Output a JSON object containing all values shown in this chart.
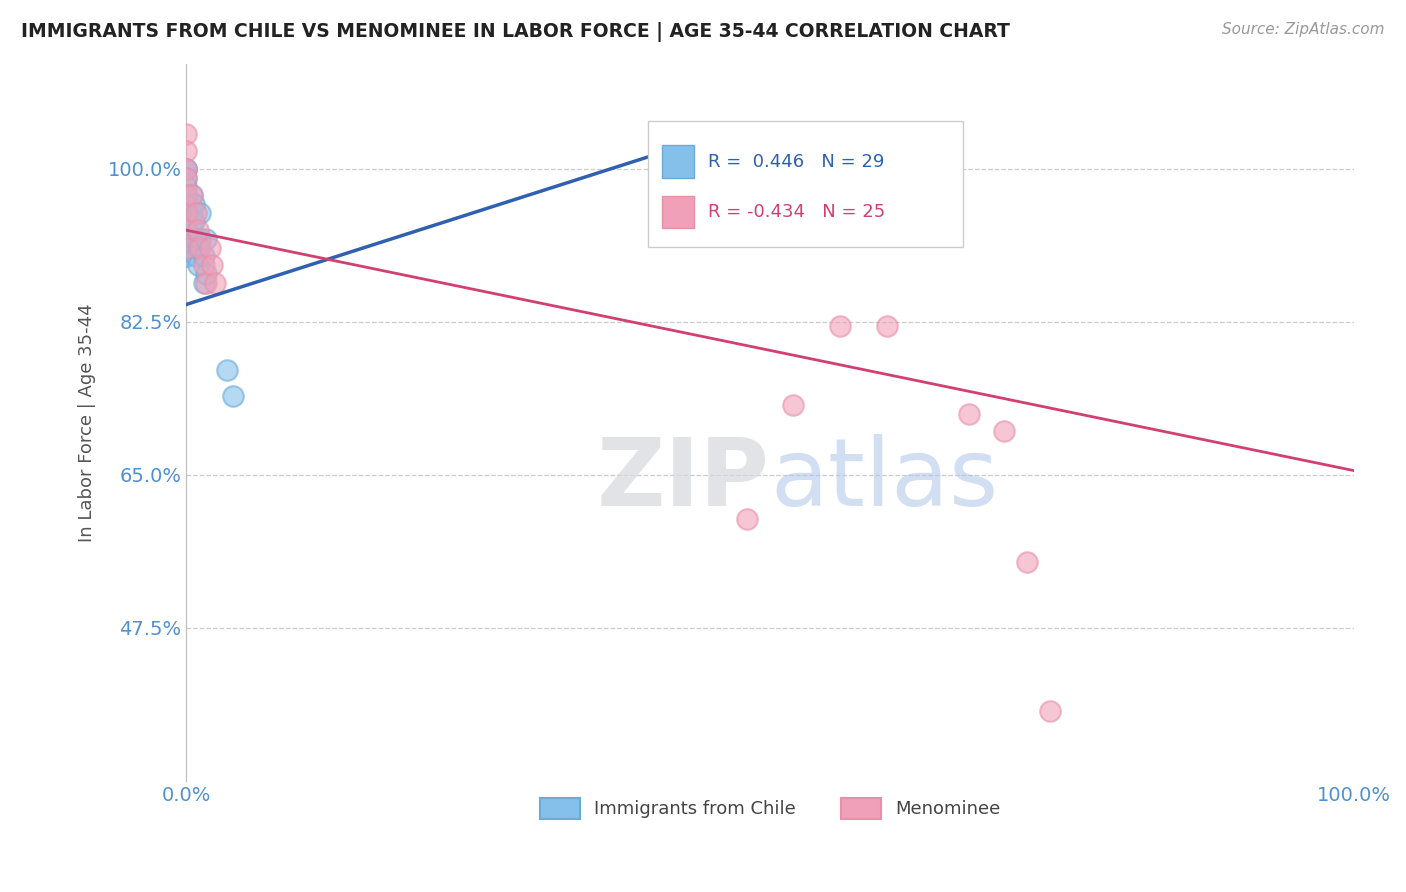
{
  "title": "IMMIGRANTS FROM CHILE VS MENOMINEE IN LABOR FORCE | AGE 35-44 CORRELATION CHART",
  "source": "Source: ZipAtlas.com",
  "ylabel": "In Labor Force | Age 35-44",
  "xlim": [
    0.0,
    1.0
  ],
  "ylim": [
    0.3,
    1.12
  ],
  "yticks": [
    0.475,
    0.65,
    0.825,
    1.0
  ],
  "ytick_labels": [
    "47.5%",
    "65.0%",
    "82.5%",
    "100.0%"
  ],
  "xticks": [
    0.0,
    1.0
  ],
  "xtick_labels": [
    "0.0%",
    "100.0%"
  ],
  "blue_R": 0.446,
  "blue_N": 29,
  "pink_R": -0.434,
  "pink_N": 25,
  "blue_scatter_x": [
    0.0,
    0.0,
    0.0,
    0.0,
    0.0,
    0.0,
    0.0,
    0.0,
    0.0,
    0.0,
    0.0,
    0.0,
    0.005,
    0.005,
    0.005,
    0.007,
    0.007,
    0.008,
    0.008,
    0.01,
    0.01,
    0.012,
    0.012,
    0.015,
    0.015,
    0.017,
    0.017,
    0.035,
    0.04
  ],
  "blue_scatter_y": [
    1.0,
    1.0,
    0.99,
    0.98,
    0.97,
    0.96,
    0.95,
    0.94,
    0.93,
    0.92,
    0.91,
    0.9,
    0.97,
    0.95,
    0.93,
    0.96,
    0.94,
    0.92,
    0.9,
    0.91,
    0.89,
    0.95,
    0.92,
    0.9,
    0.87,
    0.92,
    0.88,
    0.77,
    0.74
  ],
  "pink_scatter_x": [
    0.0,
    0.0,
    0.0,
    0.0,
    0.0,
    0.0,
    0.0,
    0.0,
    0.005,
    0.008,
    0.01,
    0.012,
    0.015,
    0.017,
    0.02,
    0.022,
    0.025,
    0.48,
    0.52,
    0.56,
    0.6,
    0.67,
    0.7,
    0.72,
    0.74
  ],
  "pink_scatter_y": [
    1.04,
    1.02,
    1.0,
    0.99,
    0.97,
    0.95,
    0.93,
    0.91,
    0.97,
    0.95,
    0.93,
    0.91,
    0.89,
    0.87,
    0.91,
    0.89,
    0.87,
    0.6,
    0.73,
    0.82,
    0.82,
    0.72,
    0.7,
    0.55,
    0.38
  ],
  "blue_line_x": [
    0.0,
    0.41
  ],
  "blue_line_y": [
    0.845,
    1.02
  ],
  "pink_line_x": [
    0.0,
    1.0
  ],
  "pink_line_y": [
    0.93,
    0.655
  ],
  "scatter_size": 220,
  "blue_color": "#85C0EA",
  "pink_color": "#F0A0B8",
  "blue_edge_color": "#6AAAD8",
  "pink_edge_color": "#E890A8",
  "blue_line_color": "#3060B0",
  "pink_line_color": "#D04070",
  "bg_color": "#FFFFFF",
  "grid_color": "#CCCCCC",
  "title_color": "#222222",
  "axis_label_color": "#555555",
  "tick_label_color": "#5090D0",
  "legend_label_blue": "Immigrants from Chile",
  "legend_label_pink": "Menominee"
}
